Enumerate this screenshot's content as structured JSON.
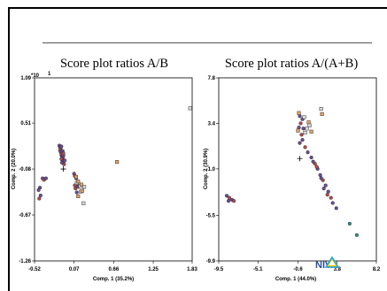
{
  "colors": {
    "background": "#ffffff",
    "marker_fill_red": "#b04a52",
    "marker_fill_purple": "#6a4e92",
    "marker_fill_teal": "#2f8c8a",
    "square_fill": "#d8d8d8",
    "square_orange": "#e8a060",
    "logo_blue": "#2b4da0",
    "logo_yellow": "#f2c200",
    "logo_cyan": "#22a6d6"
  },
  "logo": {
    "text": "NIVA"
  },
  "chart_data": [
    {
      "type": "scatter",
      "title": "Score plot ratios A/B",
      "xlabel": "Comp. 1 (35.2%)",
      "ylabel": "Comp. 2 (20.0%)",
      "xlim": [
        -0.52,
        1.83
      ],
      "ylim": [
        -1.26,
        1.09
      ],
      "xticks": [
        "-0.52",
        "0.07",
        "0.66",
        "1.25",
        "1.83"
      ],
      "yticks": [
        "-1.26",
        "-0.67",
        "-0.08",
        "0.51",
        "1.09"
      ],
      "y_exponent_label": "*10",
      "center_marker": [
        -0.09,
        -0.08
      ],
      "series": [
        {
          "marker": "circle",
          "points": [
            [
              -0.15,
              0.22
            ],
            [
              -0.14,
              0.2
            ],
            [
              -0.13,
              0.19
            ],
            [
              -0.12,
              0.21
            ],
            [
              -0.14,
              0.16
            ],
            [
              -0.13,
              0.14
            ],
            [
              -0.12,
              0.12
            ],
            [
              -0.12,
              0.1
            ],
            [
              -0.11,
              0.08
            ],
            [
              -0.1,
              0.06
            ],
            [
              -0.11,
              0.04
            ],
            [
              -0.1,
              0.02
            ],
            [
              -0.09,
              0.0
            ],
            [
              -0.08,
              -0.02
            ],
            [
              -0.07,
              0.03
            ],
            [
              -0.11,
              0.0
            ],
            [
              -0.12,
              0.05
            ],
            [
              -0.09,
              0.09
            ],
            [
              -0.1,
              0.15
            ],
            [
              -0.09,
              0.12
            ],
            [
              -0.44,
              -0.32
            ],
            [
              -0.43,
              -0.42
            ],
            [
              -0.45,
              -0.46
            ],
            [
              -0.46,
              -0.35
            ],
            [
              -0.4,
              -0.2
            ],
            [
              -0.38,
              -0.22
            ],
            [
              -0.35,
              -0.2
            ],
            [
              0.07,
              -0.14
            ],
            [
              0.08,
              -0.17
            ],
            [
              0.1,
              -0.2
            ],
            [
              0.12,
              -0.28
            ],
            [
              0.09,
              -0.33
            ],
            [
              0.11,
              -0.38
            ],
            [
              0.13,
              -0.31
            ],
            [
              0.08,
              -0.29
            ]
          ]
        },
        {
          "marker": "square",
          "points": [
            [
              0.1,
              -0.18
            ],
            [
              0.11,
              -0.26
            ],
            [
              0.13,
              -0.24
            ],
            [
              0.16,
              -0.3
            ],
            [
              0.18,
              -0.28
            ],
            [
              0.17,
              -0.37
            ],
            [
              0.13,
              -0.43
            ],
            [
              0.21,
              -0.52
            ],
            [
              0.19,
              -0.36
            ],
            [
              0.22,
              -0.31
            ],
            [
              0.71,
              0.01
            ],
            [
              1.8,
              0.7
            ]
          ]
        }
      ]
    },
    {
      "type": "scatter",
      "title": "Score plot ratios A/(A+B)",
      "xlabel": "Comp. 1 (44.0%)",
      "ylabel": "Comp. 2 (30.9%)",
      "xlim": [
        -9.5,
        8.2
      ],
      "ylim": [
        -9.9,
        7.8
      ],
      "xticks": [
        "-9.5",
        "-5.1",
        "-0.6",
        "3.8",
        "8.2"
      ],
      "yticks": [
        "-9.9",
        "-5.5",
        "-1.0",
        "3.4",
        "7.8"
      ],
      "center_marker": [
        -0.4,
        0.0
      ],
      "series": [
        {
          "marker": "circle",
          "points": [
            [
              -8.6,
              -3.6
            ],
            [
              -8.3,
              -3.8
            ],
            [
              -8.0,
              -4.0
            ],
            [
              -8.4,
              -4.1
            ],
            [
              -7.8,
              -4.1
            ],
            [
              -0.4,
              4.1
            ],
            [
              -0.1,
              3.8
            ],
            [
              -0.3,
              3.4
            ],
            [
              0.0,
              2.9
            ],
            [
              -0.5,
              3.0
            ],
            [
              -0.2,
              2.3
            ],
            [
              -0.1,
              1.8
            ],
            [
              -0.4,
              1.5
            ],
            [
              0.2,
              1.1
            ],
            [
              0.5,
              0.6
            ],
            [
              0.9,
              0.1
            ],
            [
              1.3,
              -0.5
            ],
            [
              1.6,
              -1.0
            ],
            [
              1.9,
              -1.6
            ],
            [
              2.2,
              -2.1
            ],
            [
              2.5,
              -2.6
            ],
            [
              2.8,
              -3.2
            ],
            [
              3.1,
              -3.8
            ],
            [
              3.3,
              -4.3
            ],
            [
              3.7,
              -4.8
            ],
            [
              5.2,
              -6.3
            ],
            [
              6.0,
              -7.4
            ],
            [
              1.1,
              -0.3
            ],
            [
              1.5,
              -0.8
            ],
            [
              2.0,
              -1.9
            ],
            [
              2.3,
              -2.9
            ],
            [
              2.7,
              -3.5
            ]
          ]
        },
        {
          "marker": "square",
          "points": [
            [
              -0.5,
              4.4
            ],
            [
              0.1,
              4.0
            ],
            [
              0.6,
              3.5
            ],
            [
              0.4,
              2.9
            ],
            [
              -0.6,
              2.7
            ],
            [
              0.2,
              2.5
            ],
            [
              0.9,
              2.6
            ],
            [
              2.0,
              4.8
            ],
            [
              2.1,
              4.3
            ],
            [
              0.7,
              3.2
            ]
          ]
        }
      ]
    }
  ]
}
